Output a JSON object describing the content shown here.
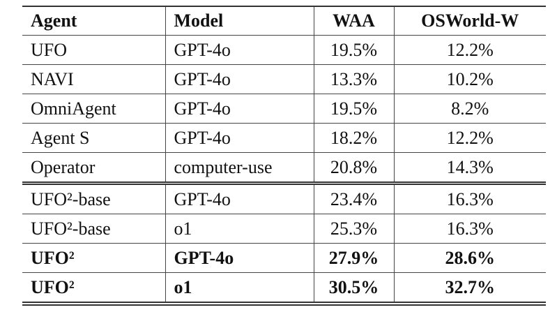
{
  "table": {
    "header": [
      "Agent",
      "Model",
      "WAA",
      "OSWorld-W"
    ],
    "rows": [
      [
        "UFO",
        "GPT-4o",
        "19.5%",
        "12.2%"
      ],
      [
        "NAVI",
        "GPT-4o",
        "13.3%",
        "10.2%"
      ],
      [
        "OmniAgent",
        "GPT-4o",
        "19.5%",
        "8.2%"
      ],
      [
        "Agent S",
        "GPT-4o",
        "18.2%",
        "12.2%"
      ],
      [
        "Operator",
        "computer-use",
        "20.8%",
        "14.3%"
      ],
      [
        "UFO²-base",
        "GPT-4o",
        "23.4%",
        "16.3%"
      ],
      [
        "UFO²-base",
        "o1",
        "25.3%",
        "16.3%"
      ],
      [
        "UFO²",
        "GPT-4o",
        "27.9%",
        "28.6%"
      ],
      [
        "UFO²",
        "o1",
        "30.5%",
        "32.7%"
      ]
    ]
  }
}
